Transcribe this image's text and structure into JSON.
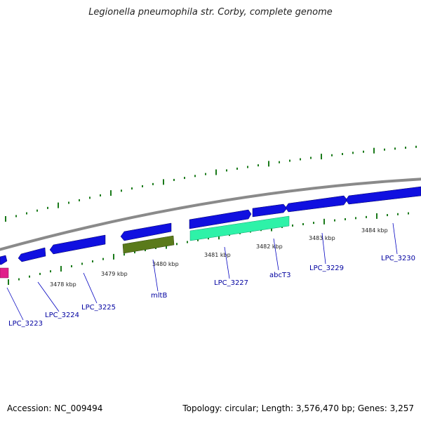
{
  "title": "Legionella pneumophila str. Corby, complete genome",
  "footer": {
    "accession": "Accession: NC_009494",
    "summary": "Topology: circular; Length: 3,576,470 bp; Genes: 3,257"
  },
  "colors": {
    "backbone": "#8a8a8a",
    "tick": "#1a7a1a",
    "cds": "#1010e0",
    "highlight_pink": "#e0208a",
    "mltB": "#5a7a1a",
    "abcT3": "#2ef2a8",
    "label_line": "#0000c0"
  },
  "scale_labels": [
    "3478 kbp",
    "3479 kbp",
    "3480 kbp",
    "3481 kbp",
    "3482 kbp",
    "3483 kbp",
    "3484 kbp"
  ],
  "gene_labels": [
    "LPC_3223",
    "LPC_3224",
    "LPC_3225",
    "mltB",
    "LPC_3227",
    "abcT3",
    "LPC_3229",
    "LPC_3230"
  ]
}
